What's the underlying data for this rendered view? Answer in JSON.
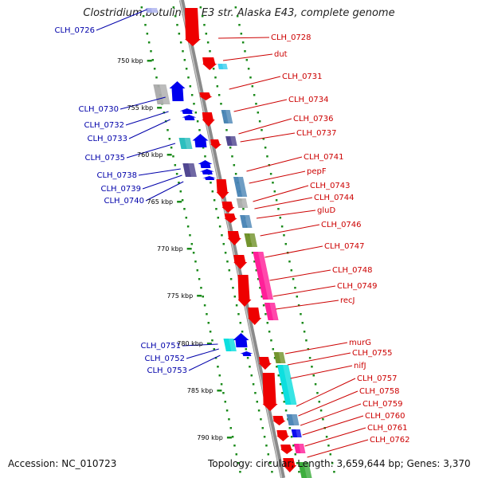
{
  "title": "Clostridium botulinum E3 str. Alaska E43, complete genome",
  "footer": {
    "accession": "Accession: NC_010723",
    "summary": "Topology: circular; Length: 3,659,644 bp; Genes: 3,370"
  },
  "colors": {
    "backbone": "#8a8a8a",
    "ruler_tick": "#1a8a1a",
    "label_right": "#cc0000",
    "label_left": "#0000aa",
    "gene_red": "#ee0000",
    "gene_blue": "#0000ee",
    "gene_steelblue": "#4682b4",
    "gene_cyan": "#00dddd",
    "gene_magenta": "#ff1493",
    "gene_olive": "#6b8e23",
    "gene_gray": "#aaaaaa",
    "gene_darkslate": "#483d8b"
  },
  "ruler": {
    "labels": [
      "750 kbp",
      "755 kbp",
      "760 kbp",
      "765 kbp",
      "770 kbp",
      "775 kbp",
      "780 kbp",
      "785 kbp",
      "790 kbp"
    ]
  },
  "right_labels": [
    "CLH_0728",
    "dut",
    "CLH_0731",
    "CLH_0734",
    "CLH_0736",
    "CLH_0737",
    "CLH_0741",
    "pepF",
    "CLH_0743",
    "CLH_0744",
    "gluD",
    "CLH_0746",
    "CLH_0747",
    "CLH_0748",
    "CLH_0749",
    "recJ",
    "murG",
    "CLH_0755",
    "nifJ",
    "CLH_0757",
    "CLH_0758",
    "CLH_0759",
    "CLH_0760",
    "CLH_0761",
    "CLH_0762"
  ],
  "left_labels": [
    "CLH_0726",
    "CLH_0730",
    "CLH_0732",
    "CLH_0733",
    "CLH_0735",
    "CLH_0738",
    "CLH_0739",
    "CLH_0740",
    "CLH_0751",
    "CLH_0752",
    "CLH_0753"
  ],
  "icons": {
    "gene_forward": "gene-arrow-forward-icon",
    "gene_reverse": "gene-arrow-reverse-icon"
  }
}
